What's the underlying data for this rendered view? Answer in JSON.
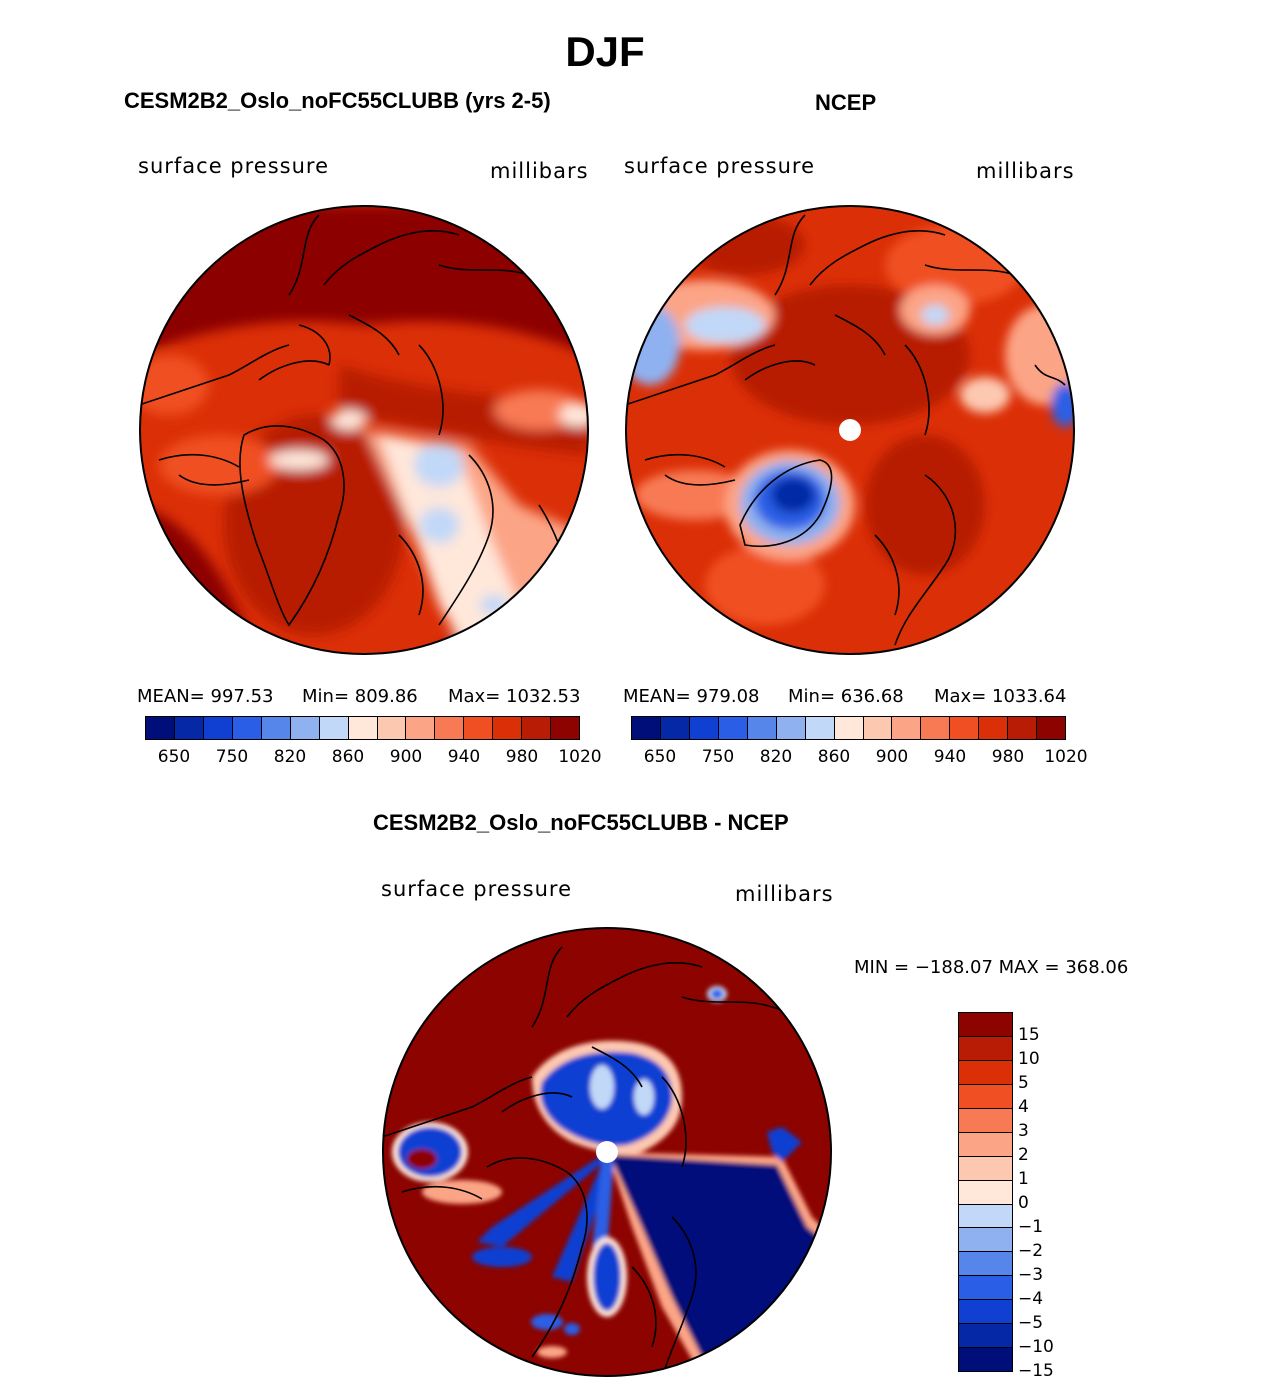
{
  "figure": {
    "title": "DJF"
  },
  "panels": [
    {
      "title": "CESM2B2_Oslo_noFC55CLUBB (yrs 2-5)",
      "variable": "surface pressure",
      "units": "millibars",
      "stats": {
        "mean": "MEAN= 997.53",
        "min": "Min= 809.86",
        "max": "Max= 1032.53"
      }
    },
    {
      "title": "NCEP",
      "variable": "surface pressure",
      "units": "millibars",
      "stats": {
        "mean": "MEAN= 979.08",
        "min": "Min= 636.68",
        "max": "Max= 1033.64"
      }
    },
    {
      "title": "CESM2B2_Oslo_noFC55CLUBB - NCEP",
      "variable": "surface pressure",
      "units": "millibars",
      "stats": {
        "range": "MIN = −188.07 MAX = 368.06"
      }
    }
  ],
  "colorbar_abs": {
    "colors": [
      "#000e7a",
      "#0529a6",
      "#0f40d2",
      "#2a5ee6",
      "#5786ea",
      "#8fb1f0",
      "#c1d8f8",
      "#ffe7da",
      "#fdc8b0",
      "#fca486",
      "#f87a55",
      "#f04f23",
      "#db2f07",
      "#b81c05",
      "#8c0300"
    ],
    "tick_labels": [
      "650",
      "750",
      "820",
      "860",
      "900",
      "940",
      "980",
      "1020"
    ]
  },
  "colorbar_diff": {
    "colors": [
      "#8c0300",
      "#b81c05",
      "#db2f07",
      "#f04f23",
      "#f87a55",
      "#fca486",
      "#fdc8b0",
      "#ffe7da",
      "#c1d8f8",
      "#8fb1f0",
      "#5786ea",
      "#2a5ee6",
      "#0f40d2",
      "#0529a6",
      "#000e7a"
    ],
    "tick_labels": [
      "15",
      "10",
      "5",
      "4",
      "3",
      "2",
      "1",
      "0",
      "−1",
      "−2",
      "−3",
      "−4",
      "−5",
      "−10",
      "−15"
    ]
  },
  "chart_data": [
    {
      "type": "heatmap",
      "title": "CESM2B2_Oslo_noFC55CLUBB (yrs 2-5)",
      "field": "surface pressure",
      "units": "millibars",
      "projection": "north polar stereographic",
      "mean": 997.53,
      "min": 809.86,
      "max": 1032.53,
      "levels": [
        650,
        700,
        750,
        800,
        820,
        840,
        860,
        880,
        900,
        920,
        940,
        960,
        980,
        1000,
        1020
      ]
    },
    {
      "type": "heatmap",
      "title": "NCEP",
      "field": "surface pressure",
      "units": "millibars",
      "projection": "north polar stereographic",
      "mean": 979.08,
      "min": 636.68,
      "max": 1033.64,
      "levels": [
        650,
        700,
        750,
        800,
        820,
        840,
        860,
        880,
        900,
        920,
        940,
        960,
        980,
        1000,
        1020
      ]
    },
    {
      "type": "heatmap",
      "title": "CESM2B2_Oslo_noFC55CLUBB - NCEP",
      "field": "surface pressure",
      "units": "millibars",
      "projection": "north polar stereographic",
      "min": -188.07,
      "max": 368.06,
      "levels": [
        -15,
        -10,
        -5,
        -4,
        -3,
        -2,
        -1,
        0,
        1,
        2,
        3,
        4,
        5,
        10,
        15
      ]
    }
  ]
}
